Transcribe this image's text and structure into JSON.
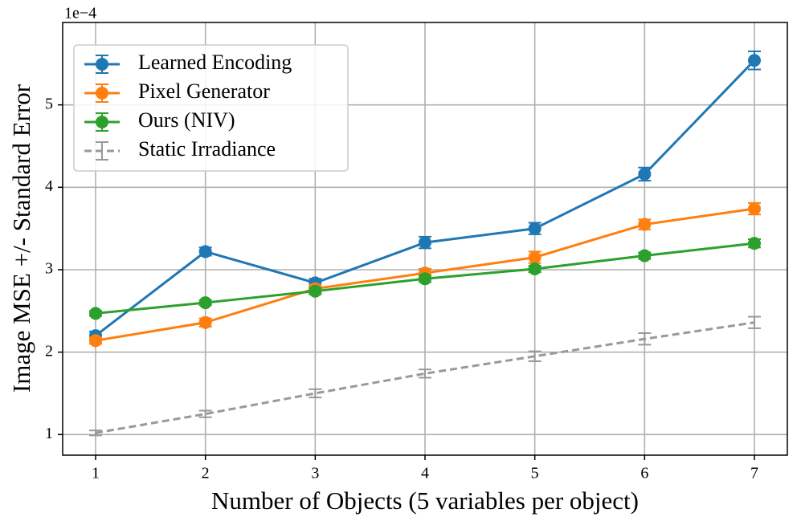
{
  "chart_data": {
    "type": "line",
    "x_label": "Number of Objects (5 variables per object)",
    "y_label": "Image MSE +/- Standard Error",
    "offset_text": "1e−4",
    "x": [
      1,
      2,
      3,
      4,
      5,
      6,
      7
    ],
    "series": [
      {
        "name": "Learned Encoding",
        "color": "#1f77b4",
        "linestyle": "solid",
        "marker": true,
        "values": [
          2.2,
          3.22,
          2.84,
          3.33,
          3.5,
          4.16,
          5.54
        ],
        "errors": [
          0.05,
          0.05,
          0.05,
          0.07,
          0.07,
          0.08,
          0.11
        ]
      },
      {
        "name": "Pixel Generator",
        "color": "#ff7f0e",
        "linestyle": "solid",
        "marker": true,
        "values": [
          2.14,
          2.36,
          2.77,
          2.96,
          3.15,
          3.55,
          3.74
        ],
        "errors": [
          0.04,
          0.05,
          0.05,
          0.05,
          0.07,
          0.06,
          0.07
        ]
      },
      {
        "name": "Ours (NIV)",
        "color": "#2ca02c",
        "linestyle": "solid",
        "marker": true,
        "values": [
          2.47,
          2.6,
          2.74,
          2.89,
          3.01,
          3.17,
          3.32
        ],
        "errors": [
          0.03,
          0.03,
          0.04,
          0.04,
          0.04,
          0.04,
          0.05
        ]
      },
      {
        "name": "Static Irradiance",
        "color": "#999999",
        "linestyle": "dashed",
        "marker": false,
        "values": [
          1.02,
          1.25,
          1.5,
          1.74,
          1.95,
          2.16,
          2.36
        ],
        "errors": [
          0.03,
          0.04,
          0.05,
          0.05,
          0.06,
          0.07,
          0.07
        ]
      }
    ],
    "xlim": [
      0.7,
      7.3
    ],
    "xticks": [
      1,
      2,
      3,
      4,
      5,
      6,
      7
    ],
    "ylim": [
      0.75,
      6.0
    ],
    "yticks": [
      1,
      2,
      3,
      4,
      5
    ],
    "grid": true,
    "legend": "upper left"
  }
}
